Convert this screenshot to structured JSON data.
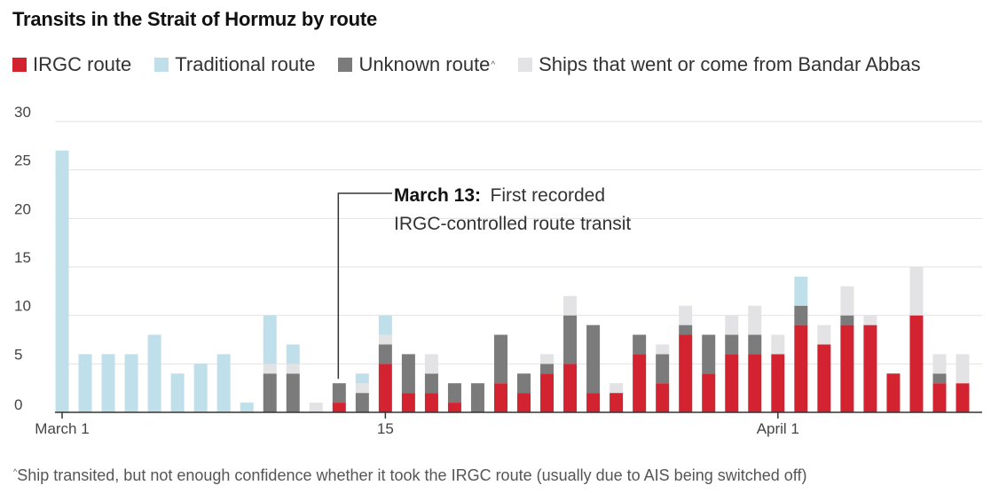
{
  "colors": {
    "irgc": "#d42330",
    "traditional": "#bfe0ea",
    "unknown": "#7b7b7b",
    "bandar_abbas": "#e3e3e5",
    "grid": "#e2e2e2",
    "axis": "#333333"
  },
  "chart_data": {
    "type": "bar",
    "stacked": true,
    "title": "Transits in the Strait of Hormuz by route",
    "legend_position": "top-left",
    "grid": true,
    "ylim": [
      0,
      30
    ],
    "yticks": [
      "0",
      "5",
      "10",
      "15",
      "20",
      "25",
      "30"
    ],
    "x_start": "2026-03-01",
    "x_end": "2026-04-10",
    "xtick_labels": [
      {
        "date": "2026-03-01",
        "label": "March 1"
      },
      {
        "date": "2026-03-15",
        "label": "15"
      },
      {
        "date": "2026-04-01",
        "label": "April 1"
      }
    ],
    "series": [
      {
        "key": "irgc",
        "name": "IRGC route"
      },
      {
        "key": "traditional",
        "name": "Traditional route"
      },
      {
        "key": "unknown",
        "name": "Unknown route",
        "note": "^"
      },
      {
        "key": "bandar",
        "name": "Ships that went or come from Bandar Abbas"
      }
    ],
    "bars": [
      {
        "date": "2026-03-01",
        "irgc": 0,
        "unknown": 0,
        "bandar": 0,
        "traditional": 27
      },
      {
        "date": "2026-03-02",
        "irgc": 0,
        "unknown": 0,
        "bandar": 0,
        "traditional": 6
      },
      {
        "date": "2026-03-03",
        "irgc": 0,
        "unknown": 0,
        "bandar": 0,
        "traditional": 6
      },
      {
        "date": "2026-03-04",
        "irgc": 0,
        "unknown": 0,
        "bandar": 0,
        "traditional": 6
      },
      {
        "date": "2026-03-05",
        "irgc": 0,
        "unknown": 0,
        "bandar": 0,
        "traditional": 8
      },
      {
        "date": "2026-03-06",
        "irgc": 0,
        "unknown": 0,
        "bandar": 0,
        "traditional": 4
      },
      {
        "date": "2026-03-07",
        "irgc": 0,
        "unknown": 0,
        "bandar": 0,
        "traditional": 5
      },
      {
        "date": "2026-03-08",
        "irgc": 0,
        "unknown": 0,
        "bandar": 0,
        "traditional": 6
      },
      {
        "date": "2026-03-09",
        "irgc": 0,
        "unknown": 0,
        "bandar": 0,
        "traditional": 1
      },
      {
        "date": "2026-03-10",
        "irgc": 0,
        "unknown": 4,
        "bandar": 1,
        "traditional": 5
      },
      {
        "date": "2026-03-11",
        "irgc": 0,
        "unknown": 4,
        "bandar": 1,
        "traditional": 2
      },
      {
        "date": "2026-03-12",
        "irgc": 0,
        "unknown": 0,
        "bandar": 1,
        "traditional": 0
      },
      {
        "date": "2026-03-13",
        "irgc": 1,
        "unknown": 2,
        "bandar": 0,
        "traditional": 0
      },
      {
        "date": "2026-03-14",
        "irgc": 0,
        "unknown": 2,
        "bandar": 1,
        "traditional": 1
      },
      {
        "date": "2026-03-15",
        "irgc": 5,
        "unknown": 2,
        "bandar": 1,
        "traditional": 2
      },
      {
        "date": "2026-03-16",
        "irgc": 2,
        "unknown": 4,
        "bandar": 0,
        "traditional": 0
      },
      {
        "date": "2026-03-17",
        "irgc": 2,
        "unknown": 2,
        "bandar": 2,
        "traditional": 0
      },
      {
        "date": "2026-03-18",
        "irgc": 1,
        "unknown": 2,
        "bandar": 0,
        "traditional": 0
      },
      {
        "date": "2026-03-19",
        "irgc": 0,
        "unknown": 3,
        "bandar": 0,
        "traditional": 0
      },
      {
        "date": "2026-03-20",
        "irgc": 3,
        "unknown": 5,
        "bandar": 0,
        "traditional": 0
      },
      {
        "date": "2026-03-21",
        "irgc": 2,
        "unknown": 2,
        "bandar": 0,
        "traditional": 0
      },
      {
        "date": "2026-03-22",
        "irgc": 4,
        "unknown": 1,
        "bandar": 1,
        "traditional": 0
      },
      {
        "date": "2026-03-23",
        "irgc": 5,
        "unknown": 5,
        "bandar": 2,
        "traditional": 0
      },
      {
        "date": "2026-03-24",
        "irgc": 2,
        "unknown": 7,
        "bandar": 0,
        "traditional": 0
      },
      {
        "date": "2026-03-25",
        "irgc": 2,
        "unknown": 0,
        "bandar": 1,
        "traditional": 0
      },
      {
        "date": "2026-03-26",
        "irgc": 6,
        "unknown": 2,
        "bandar": 0,
        "traditional": 0
      },
      {
        "date": "2026-03-27",
        "irgc": 3,
        "unknown": 3,
        "bandar": 1,
        "traditional": 0
      },
      {
        "date": "2026-03-28",
        "irgc": 8,
        "unknown": 1,
        "bandar": 2,
        "traditional": 0
      },
      {
        "date": "2026-03-29",
        "irgc": 4,
        "unknown": 4,
        "bandar": 0,
        "traditional": 0
      },
      {
        "date": "2026-03-30",
        "irgc": 6,
        "unknown": 2,
        "bandar": 2,
        "traditional": 0
      },
      {
        "date": "2026-03-31",
        "irgc": 6,
        "unknown": 2,
        "bandar": 3,
        "traditional": 0
      },
      {
        "date": "2026-04-01",
        "irgc": 6,
        "unknown": 0,
        "bandar": 2,
        "traditional": 0
      },
      {
        "date": "2026-04-02",
        "irgc": 9,
        "unknown": 2,
        "bandar": 0,
        "traditional": 3
      },
      {
        "date": "2026-04-03",
        "irgc": 7,
        "unknown": 0,
        "bandar": 2,
        "traditional": 0
      },
      {
        "date": "2026-04-04",
        "irgc": 9,
        "unknown": 1,
        "bandar": 3,
        "traditional": 0
      },
      {
        "date": "2026-04-05",
        "irgc": 9,
        "unknown": 0,
        "bandar": 1,
        "traditional": 0
      },
      {
        "date": "2026-04-06",
        "irgc": 4,
        "unknown": 0,
        "bandar": 0,
        "traditional": 0
      },
      {
        "date": "2026-04-07",
        "irgc": 10,
        "unknown": 0,
        "bandar": 5,
        "traditional": 0
      },
      {
        "date": "2026-04-08",
        "irgc": 3,
        "unknown": 1,
        "bandar": 2,
        "traditional": 0
      },
      {
        "date": "2026-04-09",
        "irgc": 3,
        "unknown": 0,
        "bandar": 3,
        "traditional": 0
      }
    ],
    "annotation": {
      "date": "2026-03-13",
      "bold": "March 13:",
      "text_line1": "First recorded",
      "text_line2": "IRGC-controlled route transit"
    }
  },
  "footnote": {
    "marker": "^",
    "text": "Ship transited, but not enough confidence whether it took the IRGC route (usually due to AIS being switched off)"
  }
}
